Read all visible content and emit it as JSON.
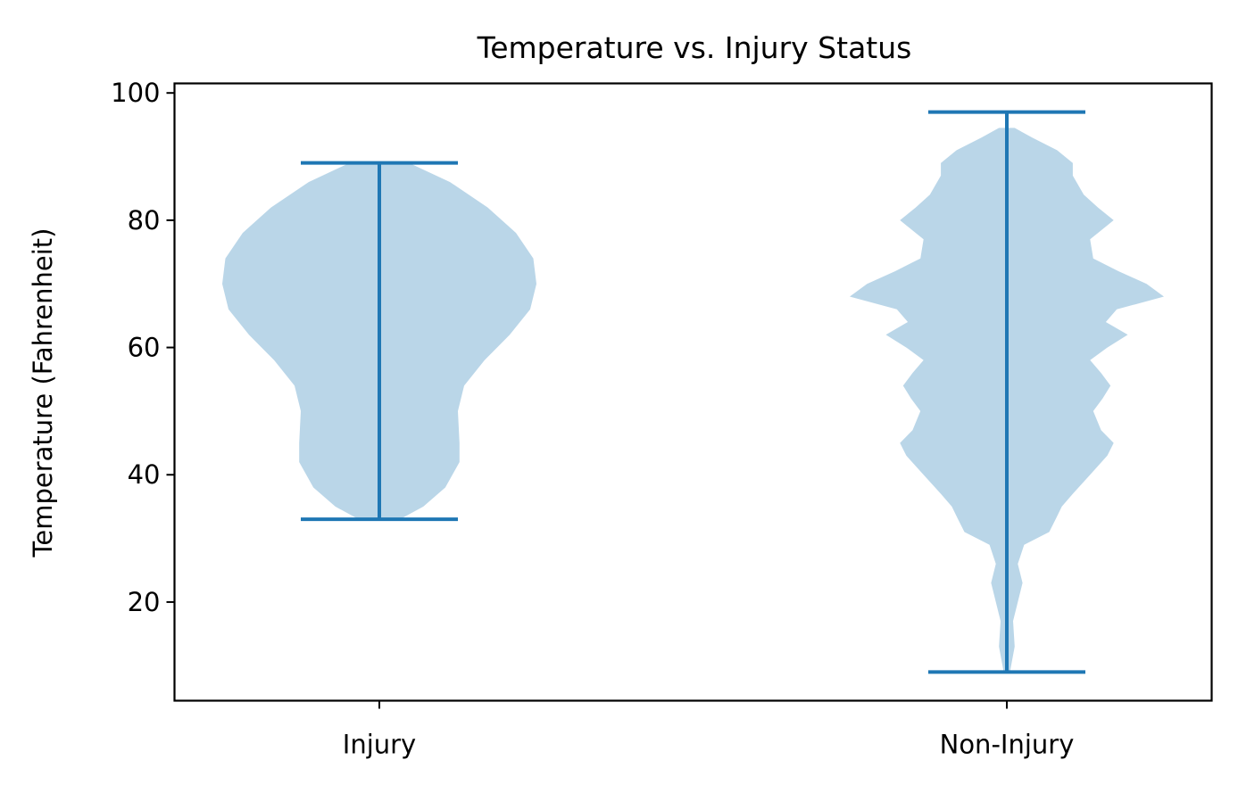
{
  "chart_data": {
    "type": "violin",
    "title": "Temperature vs. Injury Status",
    "xlabel": "",
    "ylabel": "Temperature (Fahrenheit)",
    "categories": [
      "Injury",
      "Non-Injury"
    ],
    "ylim": [
      4.5,
      101.5
    ],
    "yticks": [
      20,
      40,
      60,
      80,
      100
    ],
    "grid": false,
    "colors": {
      "body": "#bad6e8",
      "lines": "#1f77b4",
      "axes": "#000000"
    },
    "violins": [
      {
        "category": "Injury",
        "min": 33,
        "max": 89,
        "density_profile": [
          [
            33,
            0.13
          ],
          [
            35,
            0.28
          ],
          [
            38,
            0.42
          ],
          [
            42,
            0.51
          ],
          [
            45,
            0.51
          ],
          [
            50,
            0.5
          ],
          [
            54,
            0.54
          ],
          [
            58,
            0.67
          ],
          [
            62,
            0.83
          ],
          [
            66,
            0.96
          ],
          [
            70,
            1.0
          ],
          [
            74,
            0.98
          ],
          [
            78,
            0.87
          ],
          [
            82,
            0.69
          ],
          [
            86,
            0.45
          ],
          [
            89,
            0.19
          ]
        ]
      },
      {
        "category": "Non-Injury",
        "min": 9,
        "max": 97,
        "density_profile": [
          [
            9,
            0.02
          ],
          [
            13,
            0.05
          ],
          [
            17,
            0.04
          ],
          [
            20,
            0.07
          ],
          [
            23,
            0.1
          ],
          [
            26,
            0.07
          ],
          [
            29,
            0.11
          ],
          [
            31,
            0.27
          ],
          [
            33,
            0.31
          ],
          [
            35,
            0.35
          ],
          [
            37,
            0.42
          ],
          [
            40,
            0.53
          ],
          [
            43,
            0.64
          ],
          [
            45,
            0.68
          ],
          [
            47,
            0.6
          ],
          [
            50,
            0.55
          ],
          [
            52,
            0.61
          ],
          [
            54,
            0.66
          ],
          [
            56,
            0.6
          ],
          [
            58,
            0.53
          ],
          [
            60,
            0.64
          ],
          [
            62,
            0.77
          ],
          [
            64,
            0.63
          ],
          [
            66,
            0.7
          ],
          [
            68,
            1.0
          ],
          [
            70,
            0.89
          ],
          [
            72,
            0.71
          ],
          [
            74,
            0.55
          ],
          [
            77,
            0.53
          ],
          [
            80,
            0.68
          ],
          [
            82,
            0.58
          ],
          [
            84,
            0.49
          ],
          [
            87,
            0.42
          ],
          [
            89,
            0.42
          ],
          [
            91,
            0.32
          ],
          [
            93,
            0.16
          ],
          [
            94.5,
            0.05
          ]
        ]
      }
    ]
  }
}
